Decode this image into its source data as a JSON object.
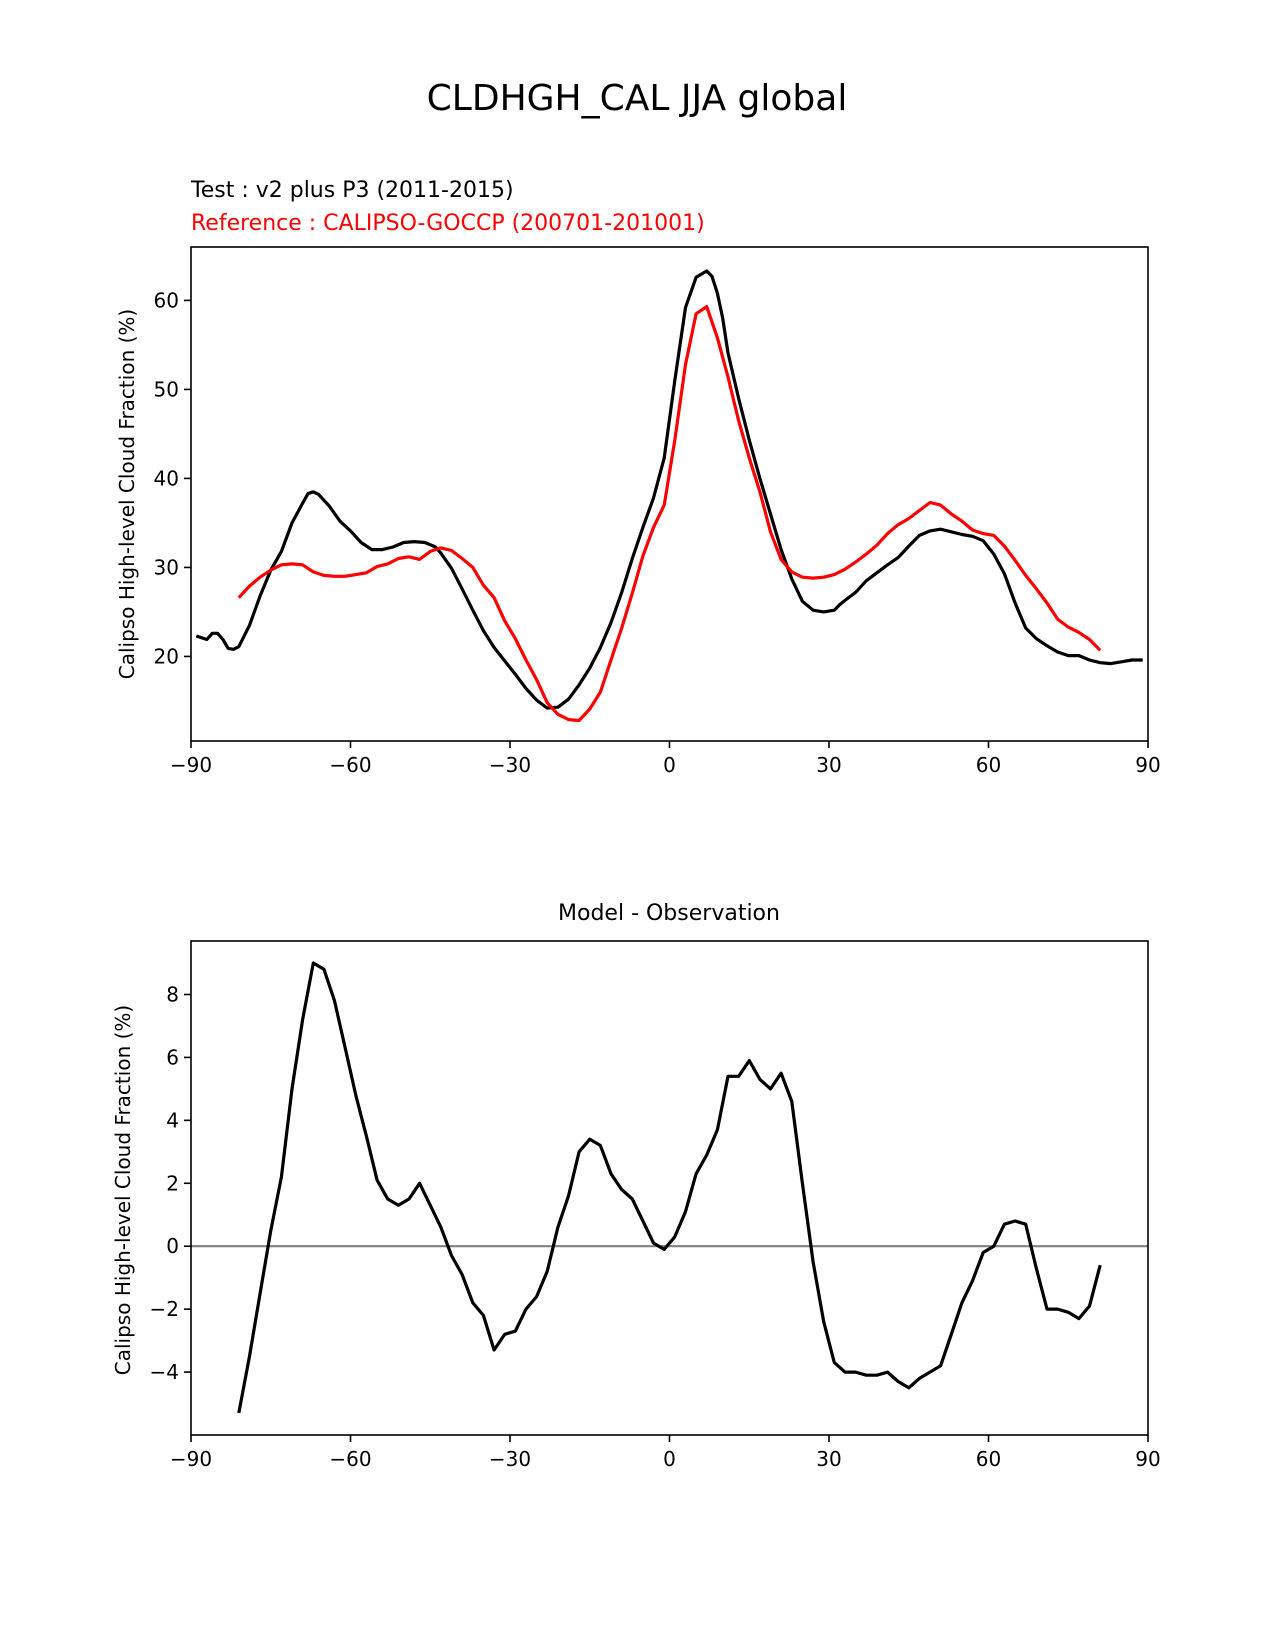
{
  "figure": {
    "title": "CLDHGH_CAL JJA global"
  },
  "chart_data": [
    {
      "type": "line",
      "subtitle_test": "Test : v2 plus P3 (2011-2015)",
      "subtitle_ref": "Reference : CALIPSO-GOCCP (200701-201001)",
      "ylabel": "Calipso High-level Cloud Fraction (%)",
      "xlim": [
        -90,
        90
      ],
      "ylim": [
        10.5,
        66
      ],
      "xticks": [
        -90,
        -60,
        -30,
        0,
        30,
        60,
        90
      ],
      "yticks": [
        20,
        30,
        40,
        50,
        60
      ],
      "grid": false,
      "colors": {
        "test": "#000000",
        "reference": "#ff0000"
      },
      "series": [
        {
          "role": "test",
          "x": [
            -89,
            -87,
            -86,
            -85,
            -84,
            -83,
            -82,
            -81,
            -79,
            -77,
            -75,
            -73,
            -71,
            -69,
            -68,
            -67,
            -66,
            -64,
            -62,
            -60,
            -58,
            -56,
            -54,
            -52,
            -50,
            -48,
            -46,
            -44,
            -43,
            -41,
            -39,
            -37,
            -35,
            -33,
            -31,
            -29,
            -27,
            -25,
            -23,
            -21,
            -19,
            -17,
            -15,
            -13,
            -11,
            -9,
            -7,
            -5,
            -3,
            -1,
            1,
            3,
            5,
            7,
            8,
            9,
            10,
            11,
            13,
            15,
            17,
            19,
            21,
            23,
            25,
            27,
            29,
            31,
            32,
            33,
            35,
            37,
            39,
            41,
            43,
            45,
            47,
            49,
            51,
            53,
            55,
            57,
            59,
            61,
            63,
            65,
            67,
            69,
            71,
            73,
            75,
            77,
            79,
            81,
            83,
            85,
            87,
            89
          ],
          "y": [
            22.3,
            21.9,
            22.6,
            22.6,
            21.9,
            20.9,
            20.8,
            21.1,
            23.5,
            26.8,
            29.7,
            31.8,
            35.0,
            37.2,
            38.3,
            38.5,
            38.2,
            36.9,
            35.2,
            34.1,
            32.8,
            32.0,
            32.0,
            32.3,
            32.8,
            32.9,
            32.8,
            32.3,
            31.6,
            29.9,
            27.6,
            25.2,
            22.9,
            21.0,
            19.5,
            18.0,
            16.4,
            15.1,
            14.2,
            14.3,
            15.2,
            16.8,
            18.7,
            21.0,
            23.8,
            27.2,
            31.0,
            34.5,
            37.8,
            42.3,
            51.0,
            59.2,
            62.6,
            63.3,
            62.7,
            60.8,
            58.0,
            54.1,
            49.0,
            44.3,
            40.0,
            36.0,
            32.0,
            28.7,
            26.2,
            25.2,
            25.0,
            25.2,
            25.8,
            26.3,
            27.2,
            28.5,
            29.4,
            30.3,
            31.1,
            32.4,
            33.6,
            34.1,
            34.3,
            34.0,
            33.7,
            33.5,
            33.0,
            31.5,
            29.3,
            26.0,
            23.2,
            22.0,
            21.2,
            20.5,
            20.1,
            20.1,
            19.6,
            19.3,
            19.2,
            19.4,
            19.6,
            19.6
          ],
          "x_trim": true
        },
        {
          "role": "reference",
          "x": [
            -81,
            -79,
            -77,
            -75,
            -73,
            -71,
            -69,
            -67,
            -65,
            -63,
            -61,
            -59,
            -57,
            -55,
            -53,
            -51,
            -49,
            -47,
            -45,
            -43,
            -41,
            -39,
            -37,
            -35,
            -33,
            -31,
            -29,
            -27,
            -25,
            -23,
            -21,
            -19,
            -17,
            -15,
            -13,
            -11,
            -9,
            -7,
            -5,
            -3,
            -1,
            1,
            3,
            5,
            7,
            9,
            11,
            13,
            15,
            17,
            19,
            21,
            23,
            25,
            27,
            29,
            31,
            33,
            35,
            37,
            39,
            41,
            43,
            45,
            47,
            49,
            51,
            53,
            55,
            57,
            59,
            61,
            63,
            65,
            67,
            69,
            71,
            73,
            75,
            77,
            79,
            81
          ],
          "y": [
            26.6,
            27.9,
            28.9,
            29.7,
            30.3,
            30.4,
            30.3,
            29.5,
            29.1,
            29.0,
            29.0,
            29.2,
            29.4,
            30.1,
            30.4,
            31.0,
            31.2,
            30.9,
            31.8,
            32.2,
            31.9,
            31.0,
            30.0,
            28.0,
            26.6,
            24.0,
            22.0,
            19.6,
            17.4,
            14.8,
            13.5,
            12.9,
            12.8,
            14.1,
            16.0,
            19.6,
            23.2,
            27.1,
            31.3,
            34.5,
            37.0,
            44.3,
            52.8,
            58.5,
            59.3,
            55.8,
            51.4,
            46.5,
            42.3,
            38.5,
            34.0,
            30.9,
            29.5,
            28.9,
            28.8,
            28.9,
            29.2,
            29.8,
            30.6,
            31.5,
            32.5,
            33.8,
            34.8,
            35.5,
            36.4,
            37.3,
            37.0,
            36.0,
            35.2,
            34.2,
            33.8,
            33.6,
            32.4,
            30.8,
            29.1,
            27.6,
            26.0,
            24.2,
            23.3,
            22.7,
            21.9,
            20.7
          ]
        }
      ]
    },
    {
      "type": "line",
      "title": "Model - Observation",
      "ylabel": "Calipso High-level Cloud Fraction (%)",
      "xlim": [
        -90,
        90
      ],
      "ylim": [
        -6,
        9.7
      ],
      "xticks": [
        -90,
        -60,
        -30,
        0,
        30,
        60,
        90
      ],
      "yticks": [
        -4,
        -2,
        0,
        2,
        4,
        6,
        8
      ],
      "grid": false,
      "zero_line": 0,
      "colors": {
        "difference": "#000000",
        "zero": "#808080"
      },
      "series": [
        {
          "role": "difference",
          "x": [
            -81,
            -79,
            -77,
            -75,
            -73,
            -71,
            -69,
            -67,
            -65,
            -63,
            -61,
            -59,
            -57,
            -55,
            -53,
            -51,
            -49,
            -47,
            -45,
            -43,
            -41,
            -39,
            -37,
            -35,
            -33,
            -31,
            -29,
            -27,
            -25,
            -23,
            -21,
            -19,
            -17,
            -15,
            -13,
            -11,
            -9,
            -7,
            -5,
            -3,
            -1,
            1,
            3,
            5,
            7,
            9,
            11,
            13,
            15,
            17,
            19,
            21,
            23,
            25,
            27,
            29,
            31,
            33,
            35,
            37,
            39,
            41,
            43,
            45,
            47,
            49,
            51,
            53,
            55,
            57,
            59,
            61,
            63,
            65,
            67,
            69,
            71,
            73,
            75,
            77,
            79,
            81
          ],
          "y": [
            -5.3,
            -3.5,
            -1.5,
            0.5,
            2.2,
            5.0,
            7.2,
            9.0,
            8.8,
            7.8,
            6.3,
            4.8,
            3.5,
            2.1,
            1.5,
            1.3,
            1.5,
            2.0,
            1.3,
            0.6,
            -0.3,
            -0.9,
            -1.8,
            -2.2,
            -3.3,
            -2.8,
            -2.7,
            -2.0,
            -1.6,
            -0.8,
            0.6,
            1.6,
            3.0,
            3.4,
            3.2,
            2.3,
            1.8,
            1.5,
            0.8,
            0.1,
            -0.1,
            0.3,
            1.1,
            2.3,
            2.9,
            3.7,
            5.4,
            5.4,
            5.9,
            5.3,
            5.0,
            5.5,
            4.6,
            2.0,
            -0.5,
            -2.4,
            -3.7,
            -4.0,
            -4.0,
            -4.1,
            -4.1,
            -4.0,
            -4.3,
            -4.5,
            -4.2,
            -4.0,
            -3.8,
            -2.8,
            -1.8,
            -1.1,
            -0.2,
            0.0,
            0.7,
            0.8,
            0.7,
            -0.7,
            -2.0,
            -2.0,
            -2.1,
            -2.3,
            -1.9,
            -0.6
          ]
        }
      ]
    }
  ]
}
